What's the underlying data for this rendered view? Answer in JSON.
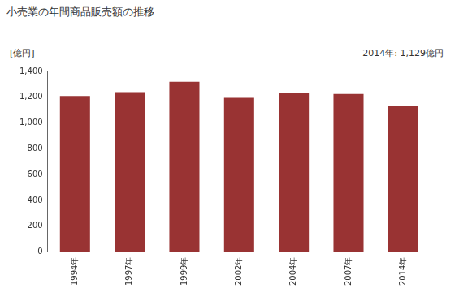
{
  "chart_data": {
    "type": "bar",
    "title": "小売業の年間商品販売額の推移",
    "y_label": "[億円]",
    "annotation": "2014年: 1,129億円",
    "categories": [
      "1994年",
      "1997年",
      "1999年",
      "2002年",
      "2004年",
      "2007年",
      "2014年"
    ],
    "values": [
      1210,
      1240,
      1320,
      1195,
      1235,
      1225,
      1129
    ],
    "color": "#993333",
    "ylim": [
      0,
      1400
    ],
    "yticks": [
      0,
      200,
      400,
      600,
      800,
      {
        "value": 1000,
        "label": "1,000"
      },
      {
        "value": 1200,
        "label": "1,200"
      },
      {
        "value": 1400,
        "label": "1,400"
      }
    ],
    "grid": false
  }
}
